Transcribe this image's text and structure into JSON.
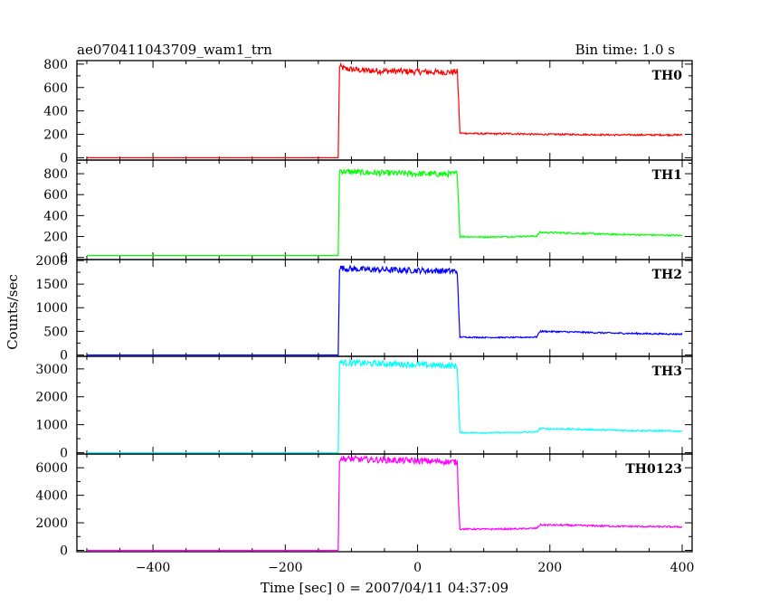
{
  "header": {
    "title": "ae070411043709_wam1_trn",
    "bin_time": "Bin time: 1.0 s"
  },
  "chart_data": {
    "type": "line",
    "title": "ae070411043709_wam1_trn",
    "xlabel": "Time [sec] 0 = 2007/04/11 04:37:09",
    "ylabel": "Counts/sec",
    "xlim": [
      -515,
      415
    ],
    "x_ticks": [
      -400,
      -200,
      0,
      200,
      400
    ],
    "x_tick_labels": [
      "−400",
      "−200",
      "0",
      "200",
      "400"
    ],
    "grid": false,
    "panels": [
      {
        "name": "TH0",
        "color": "#ff0000",
        "ylim": [
          -20,
          830
        ],
        "y_ticks": [
          0,
          200,
          400,
          600,
          800
        ],
        "x": [
          -500,
          -120,
          -118,
          -110,
          -80,
          -40,
          0,
          40,
          60,
          62,
          64,
          100,
          150,
          180,
          220,
          300,
          400
        ],
        "y": [
          0,
          0,
          780,
          760,
          745,
          740,
          735,
          730,
          735,
          500,
          210,
          205,
          205,
          200,
          200,
          195,
          195
        ]
      },
      {
        "name": "TH1",
        "color": "#00ff00",
        "ylim": [
          -20,
          930
        ],
        "y_ticks": [
          0,
          200,
          400,
          600,
          800
        ],
        "x": [
          -500,
          -120,
          -118,
          -110,
          -80,
          -40,
          0,
          40,
          60,
          62,
          64,
          100,
          150,
          180,
          185,
          220,
          300,
          400
        ],
        "y": [
          20,
          20,
          830,
          820,
          810,
          805,
          800,
          795,
          800,
          500,
          200,
          195,
          200,
          205,
          240,
          235,
          220,
          210
        ],
        "baseline": 20
      },
      {
        "name": "TH2",
        "color": "#0000ff",
        "ylim": [
          -30,
          2020
        ],
        "y_ticks": [
          0,
          500,
          1000,
          1500,
          2000
        ],
        "x": [
          -500,
          -120,
          -118,
          -110,
          -80,
          -40,
          0,
          40,
          60,
          62,
          64,
          100,
          150,
          180,
          185,
          220,
          300,
          400
        ],
        "y": [
          0,
          0,
          1850,
          1830,
          1810,
          1800,
          1790,
          1780,
          1770,
          1000,
          380,
          370,
          370,
          380,
          500,
          490,
          460,
          440
        ]
      },
      {
        "name": "TH3",
        "color": "#00ffff",
        "ylim": [
          -50,
          3450
        ],
        "y_ticks": [
          0,
          1000,
          2000,
          3000
        ],
        "x": [
          -500,
          -120,
          -118,
          -110,
          -80,
          -40,
          0,
          40,
          60,
          62,
          64,
          100,
          150,
          180,
          185,
          220,
          300,
          400
        ],
        "y": [
          0,
          0,
          3250,
          3220,
          3200,
          3180,
          3150,
          3120,
          3100,
          1800,
          720,
          710,
          720,
          740,
          860,
          850,
          800,
          770
        ]
      },
      {
        "name": "TH0123",
        "color": "#ff00ff",
        "ylim": [
          -100,
          7000
        ],
        "y_ticks": [
          0,
          2000,
          4000,
          6000
        ],
        "x": [
          -500,
          -120,
          -118,
          -110,
          -80,
          -40,
          0,
          40,
          60,
          62,
          64,
          100,
          150,
          180,
          185,
          220,
          300,
          400
        ],
        "y": [
          0,
          0,
          6700,
          6650,
          6600,
          6550,
          6500,
          6450,
          6400,
          3500,
          1550,
          1540,
          1560,
          1600,
          1850,
          1830,
          1750,
          1700
        ]
      }
    ]
  }
}
